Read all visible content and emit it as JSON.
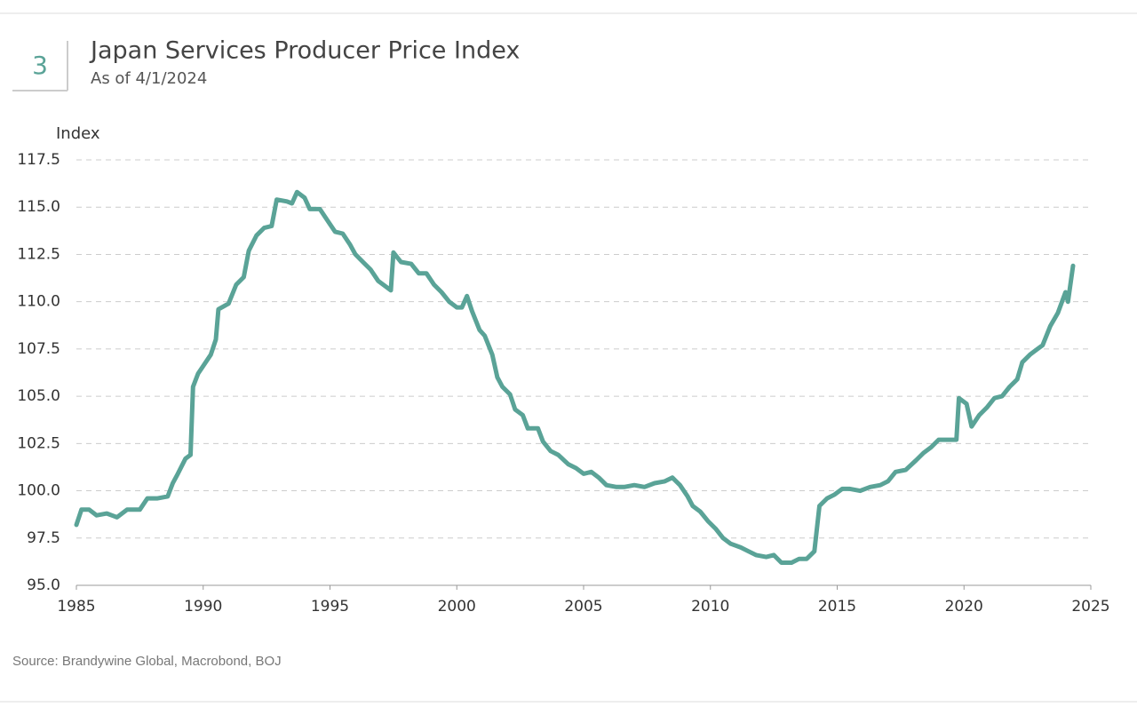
{
  "badge": "3",
  "chart_data": {
    "type": "line",
    "title": "Japan Services Producer Price Index",
    "subtitle": "As of 4/1/2024",
    "y_label": "Index",
    "source": "Source: Brandywine Global, Macrobond, BOJ",
    "color": "#5aa397",
    "grid": true,
    "x": [
      1985.0,
      1985.2,
      1985.5,
      1985.8,
      1986.2,
      1986.6,
      1987.0,
      1987.5,
      1987.8,
      1988.2,
      1988.6,
      1988.8,
      1989.0,
      1989.3,
      1989.5,
      1989.6,
      1989.8,
      1990.0,
      1990.3,
      1990.5,
      1990.6,
      1991.0,
      1991.3,
      1991.6,
      1991.8,
      1992.1,
      1992.4,
      1992.7,
      1992.9,
      1993.3,
      1993.5,
      1993.7,
      1994.0,
      1994.2,
      1994.6,
      1994.9,
      1995.2,
      1995.5,
      1995.8,
      1996.0,
      1996.3,
      1996.6,
      1996.9,
      1997.2,
      1997.4,
      1997.5,
      1997.8,
      1998.2,
      1998.5,
      1998.8,
      1999.1,
      1999.4,
      1999.7,
      2000.0,
      2000.2,
      2000.4,
      2000.6,
      2000.9,
      2001.1,
      2001.4,
      2001.6,
      2001.8,
      2002.1,
      2002.3,
      2002.6,
      2002.8,
      2003.2,
      2003.4,
      2003.7,
      2004.0,
      2004.4,
      2004.7,
      2005.0,
      2005.3,
      2005.6,
      2005.9,
      2006.3,
      2006.6,
      2007.0,
      2007.4,
      2007.8,
      2008.2,
      2008.5,
      2008.8,
      2009.1,
      2009.3,
      2009.6,
      2009.9,
      2010.2,
      2010.5,
      2010.8,
      2011.2,
      2011.5,
      2011.8,
      2012.2,
      2012.5,
      2012.8,
      2013.2,
      2013.5,
      2013.8,
      2014.1,
      2014.3,
      2014.6,
      2014.9,
      2015.2,
      2015.5,
      2015.9,
      2016.3,
      2016.7,
      2017.0,
      2017.3,
      2017.7,
      2018.1,
      2018.4,
      2018.7,
      2019.0,
      2019.3,
      2019.7,
      2019.8,
      2020.1,
      2020.3,
      2020.6,
      2020.9,
      2021.2,
      2021.5,
      2021.8,
      2022.1,
      2022.3,
      2022.6,
      2022.9,
      2023.1,
      2023.4,
      2023.7,
      2024.0,
      2024.1,
      2024.3
    ],
    "values": [
      98.2,
      99.0,
      99.0,
      98.7,
      98.8,
      98.6,
      99.0,
      99.0,
      99.6,
      99.6,
      99.7,
      100.4,
      100.9,
      101.7,
      101.9,
      105.5,
      106.2,
      106.6,
      107.2,
      108.0,
      109.6,
      109.9,
      110.9,
      111.3,
      112.7,
      113.5,
      113.9,
      114.0,
      115.4,
      115.3,
      115.2,
      115.8,
      115.5,
      114.9,
      114.9,
      114.3,
      113.7,
      113.6,
      113.0,
      112.5,
      112.1,
      111.7,
      111.1,
      110.8,
      110.6,
      112.6,
      112.1,
      112.0,
      111.5,
      111.5,
      110.9,
      110.5,
      110.0,
      109.7,
      109.7,
      110.3,
      109.5,
      108.5,
      108.2,
      107.2,
      106.0,
      105.5,
      105.1,
      104.3,
      104.0,
      103.3,
      103.3,
      102.6,
      102.1,
      101.9,
      101.4,
      101.2,
      100.9,
      101.0,
      100.7,
      100.3,
      100.2,
      100.2,
      100.3,
      100.2,
      100.4,
      100.5,
      100.7,
      100.3,
      99.7,
      99.2,
      98.9,
      98.4,
      98.0,
      97.5,
      97.2,
      97.0,
      96.8,
      96.6,
      96.5,
      96.6,
      96.2,
      96.2,
      96.4,
      96.4,
      96.8,
      99.2,
      99.6,
      99.8,
      100.1,
      100.1,
      100.0,
      100.2,
      100.3,
      100.5,
      101.0,
      101.1,
      101.6,
      102.0,
      102.3,
      102.7,
      102.7,
      102.7,
      104.9,
      104.6,
      103.4,
      104.0,
      104.4,
      104.9,
      105.0,
      105.5,
      105.9,
      106.8,
      107.2,
      107.5,
      107.7,
      108.7,
      109.4,
      110.5,
      110.0,
      111.9
    ],
    "xlim": [
      1985,
      2025
    ],
    "xticks": [
      1985,
      1990,
      1995,
      2000,
      2005,
      2010,
      2015,
      2020,
      2025
    ],
    "ylim": [
      95,
      117.5
    ],
    "yticks": [
      {
        "value": 95,
        "label": "95.0"
      },
      97.5,
      {
        "value": 100,
        "label": "100.0"
      },
      102.5,
      {
        "value": 105,
        "label": "105.0"
      },
      107.5,
      {
        "value": 110,
        "label": "110.0"
      },
      112.5,
      {
        "value": 115,
        "label": "115.0"
      },
      117.5
    ]
  }
}
